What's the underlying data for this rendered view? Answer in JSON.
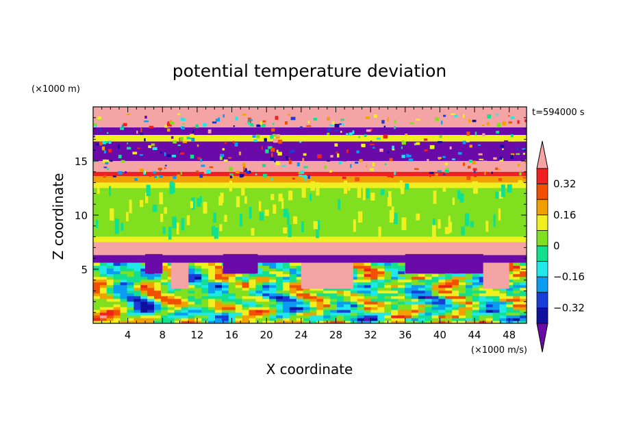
{
  "chart_data": {
    "type": "heatmap",
    "title": "potential temperature deviation",
    "xlabel": "X coordinate",
    "ylabel": "Z coordinate",
    "x_unit": "(×1000 m/s)",
    "y_unit": "(×1000 m)",
    "time_label": "t=594000 s",
    "xlim": [
      0,
      50
    ],
    "ylim": [
      0,
      20
    ],
    "x_ticks": [
      4,
      8,
      12,
      16,
      20,
      24,
      28,
      32,
      36,
      40,
      44,
      48
    ],
    "y_ticks": [
      5,
      10,
      15
    ],
    "colorbar": {
      "labels": [
        "0.32",
        "0.16",
        "0",
        "−0.16",
        "−0.32"
      ],
      "label_values": [
        0.32,
        0.16,
        0,
        -0.16,
        -0.32
      ],
      "levels": [
        -0.4,
        -0.32,
        -0.24,
        -0.16,
        -0.08,
        0,
        0.08,
        0.16,
        0.24,
        0.32,
        0.4
      ],
      "colors": [
        "#6a0aa8",
        "#1010a0",
        "#1a3cd8",
        "#0a9cf0",
        "#20e8e8",
        "#10e090",
        "#80e020",
        "#f0f020",
        "#f0a000",
        "#f05000",
        "#f02020",
        "#f4a4a4"
      ],
      "extend": "both"
    },
    "bands": [
      {
        "z": [
          19.4,
          20.0
        ],
        "value": 0.45
      },
      {
        "z": [
          18.1,
          19.4
        ],
        "value": 0.45
      },
      {
        "z": [
          17.4,
          18.1
        ],
        "value": -0.45
      },
      {
        "z": [
          16.8,
          17.4
        ],
        "value": 0.1
      },
      {
        "z": [
          15.0,
          16.8
        ],
        "value": -0.45
      },
      {
        "z": [
          14.0,
          15.0
        ],
        "value": 0.45
      },
      {
        "z": [
          13.6,
          14.0
        ],
        "value": 0.36
      },
      {
        "z": [
          13.0,
          13.6
        ],
        "value": 0.2
      },
      {
        "z": [
          12.5,
          13.0
        ],
        "value": 0.1
      },
      {
        "z": [
          8.0,
          12.5
        ],
        "value": 0.03
      },
      {
        "z": [
          7.5,
          8.0
        ],
        "value": 0.1
      },
      {
        "z": [
          6.3,
          7.5
        ],
        "value": 0.45
      },
      {
        "z": [
          5.6,
          6.3
        ],
        "value": -0.45
      },
      {
        "z": [
          0.0,
          5.6
        ],
        "value": 0.0
      }
    ]
  }
}
